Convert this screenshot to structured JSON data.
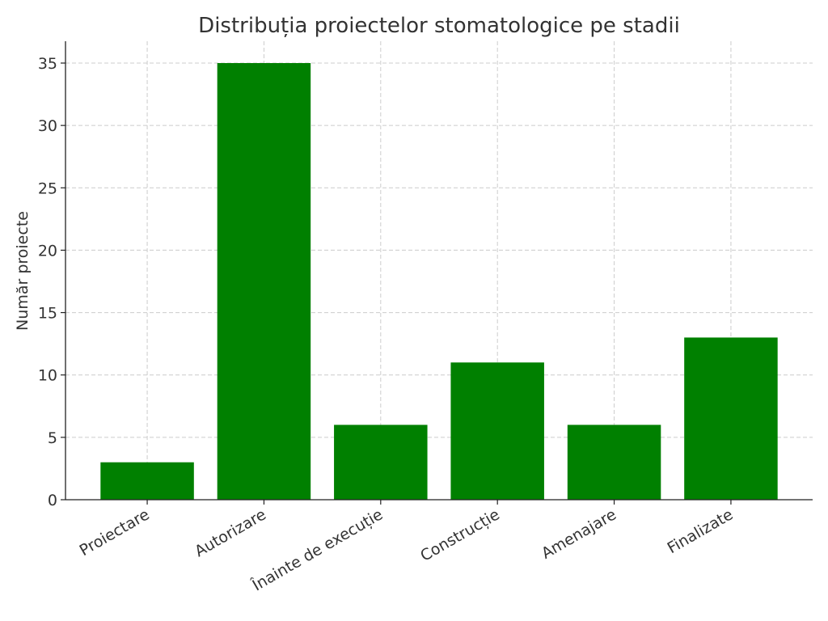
{
  "chart_data": {
    "type": "bar",
    "title": "Distribuția proiectelor stomatologice pe stadii",
    "xlabel": "",
    "ylabel": "Număr proiecte",
    "categories": [
      "Proiectare",
      "Autorizare",
      "Înainte de execuție",
      "Construcție",
      "Amenajare",
      "Finalizate"
    ],
    "values": [
      3,
      35,
      6,
      11,
      6,
      13
    ],
    "ylim": [
      0,
      36.75
    ],
    "yticks": [
      0,
      5,
      10,
      15,
      20,
      25,
      30,
      35
    ],
    "grid": true,
    "bar_color": "#008000"
  }
}
